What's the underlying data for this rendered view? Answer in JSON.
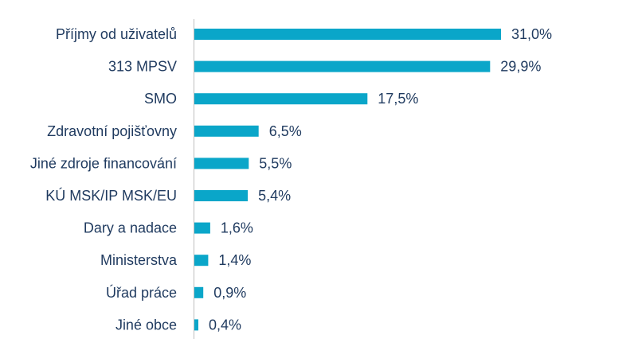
{
  "chart_data": {
    "type": "bar",
    "orientation": "horizontal",
    "categories": [
      "Příjmy od uživatelů",
      "313 MPSV",
      "SMO",
      "Zdravotní pojišťovny",
      "Jiné zdroje financování",
      "KÚ MSK/IP MSK/EU",
      "Dary a nadace",
      "Ministerstva",
      "Úřad práce",
      "Jiné obce"
    ],
    "values": [
      31.0,
      29.9,
      17.5,
      6.5,
      5.5,
      5.4,
      1.6,
      1.4,
      0.9,
      0.4
    ],
    "value_labels": [
      "31,0%",
      "29,9%",
      "17,5%",
      "6,5%",
      "5,5%",
      "5,4%",
      "1,6%",
      "1,4%",
      "0,9%",
      "0,4%"
    ],
    "title": "",
    "xlabel": "",
    "ylabel": "",
    "xlim": [
      0,
      31.0
    ],
    "grid": false,
    "legend": "none",
    "bar_color": "#0aa6c9",
    "text_color": "#1f3a5f"
  }
}
